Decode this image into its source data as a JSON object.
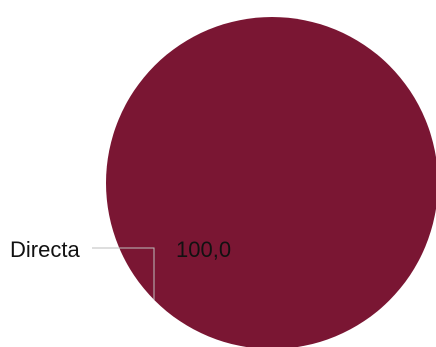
{
  "chart_data": {
    "type": "pie",
    "categories": [
      "Directa"
    ],
    "values": [
      100.0
    ],
    "value_labels": [
      "100,0"
    ],
    "colors": [
      "#7a1633"
    ],
    "title": "",
    "legend": "none"
  },
  "colors": {
    "slice": "#7a1633",
    "leader_line": "#bdbdbd",
    "text": "#111111",
    "background": "#ffffff"
  }
}
